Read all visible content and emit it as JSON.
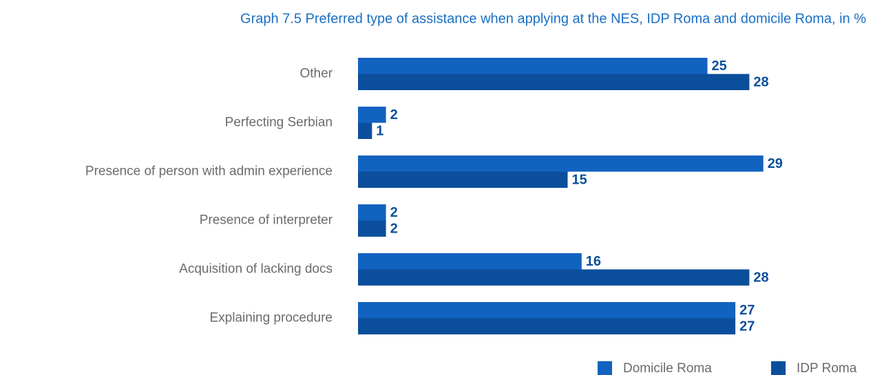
{
  "chart_data": {
    "type": "hbar",
    "title": "Graph 7.5 Preferred type of assistance when applying at the NES, IDP Roma and domicile Roma, in %",
    "categories": [
      "Other",
      "Perfecting Serbian",
      "Presence of person with admin experience",
      "Presence of interpreter",
      "Acquisition of lacking docs",
      "Explaining procedure"
    ],
    "series": [
      {
        "name": "Domicile Roma",
        "color": "#1262c0",
        "values": [
          25,
          2,
          29,
          2,
          16,
          27
        ]
      },
      {
        "name": "IDP Roma",
        "color": "#0b4f9c",
        "values": [
          28,
          1,
          15,
          2,
          28,
          27
        ]
      }
    ],
    "legend": "bottom-right"
  }
}
